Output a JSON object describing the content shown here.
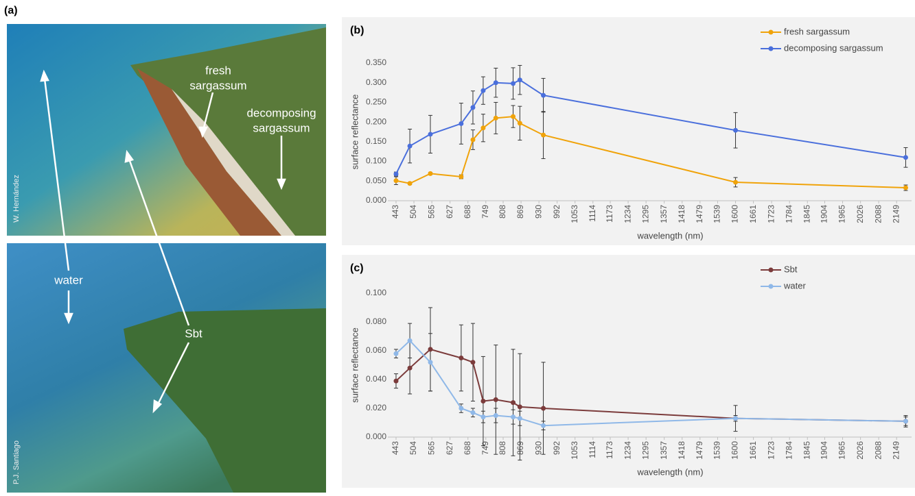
{
  "photo_panel": {
    "label": "(a)",
    "annotations": [
      "fresh",
      "sargassum",
      "decomposing",
      "sargassum",
      "water",
      "Sbt"
    ],
    "credits": [
      "W. Hernández",
      "P.J. Santiago"
    ]
  },
  "chart_data": [
    {
      "type": "line",
      "title": "(b)",
      "x_label": "wavelength (nm)",
      "y_label": "surface reflectance",
      "x": [
        443,
        490,
        560,
        665,
        705,
        740,
        783,
        842,
        865,
        945,
        1600,
        2180
      ],
      "xlim": [
        415,
        2200
      ],
      "xticks": [
        443,
        504,
        565,
        627,
        688,
        749,
        808,
        869,
        930,
        992,
        1053,
        1114,
        1173,
        1234,
        1295,
        1357,
        1418,
        1479,
        1539,
        1600,
        1661,
        1723,
        1784,
        1845,
        1904,
        1965,
        2026,
        2088,
        2149
      ],
      "ylim": [
        0,
        0.35
      ],
      "yticks": [
        {
          "value": 0,
          "label": "0.000"
        },
        {
          "value": 0.05,
          "label": "0.050"
        },
        {
          "value": 0.1,
          "label": "0.100"
        },
        {
          "value": 0.15,
          "label": "0.150"
        },
        {
          "value": 0.2,
          "label": "0.200"
        },
        {
          "value": 0.25,
          "label": "0.250"
        },
        {
          "value": 0.3,
          "label": "0.300"
        },
        {
          "value": 0.35,
          "label": "0.350"
        }
      ],
      "grid": false,
      "legend": "top-right",
      "series": [
        {
          "name": "fresh sargassum",
          "color": "#f0a30a",
          "values": [
            0.051,
            0.044,
            0.069,
            0.061,
            0.155,
            0.185,
            0.21,
            0.214,
            0.197,
            0.167,
            0.047,
            0.033
          ],
          "errors": [
            0.01,
            0.003,
            0.003,
            0.005,
            0.025,
            0.035,
            0.04,
            0.028,
            0.043,
            0.06,
            0.012,
            0.007
          ]
        },
        {
          "name": "decomposing sargassum",
          "color": "#4a6fdc",
          "values": [
            0.068,
            0.139,
            0.169,
            0.196,
            0.237,
            0.28,
            0.3,
            0.298,
            0.307,
            0.268,
            0.179,
            0.11
          ],
          "errors": [
            0.005,
            0.043,
            0.048,
            0.052,
            0.042,
            0.035,
            0.037,
            0.04,
            0.037,
            0.043,
            0.045,
            0.025
          ]
        }
      ]
    },
    {
      "type": "line",
      "title": "(c)",
      "x_label": "wavelength (nm)",
      "y_label": "surface reflectance",
      "x": [
        443,
        490,
        560,
        665,
        705,
        740,
        783,
        842,
        865,
        945,
        1600,
        2180
      ],
      "xlim": [
        415,
        2200
      ],
      "xticks": [
        443,
        504,
        565,
        627,
        688,
        749,
        808,
        869,
        930,
        992,
        1053,
        1114,
        1173,
        1234,
        1295,
        1357,
        1418,
        1479,
        1539,
        1600,
        1661,
        1723,
        1784,
        1845,
        1904,
        1965,
        2026,
        2088,
        2149
      ],
      "ylim": [
        0,
        0.1
      ],
      "yticks": [
        {
          "value": 0,
          "label": "0.000"
        },
        {
          "value": 0.02,
          "label": "0.020"
        },
        {
          "value": 0.04,
          "label": "0.040"
        },
        {
          "value": 0.06,
          "label": "0.060"
        },
        {
          "value": 0.08,
          "label": "0.080"
        },
        {
          "value": 0.1,
          "label": "0.100"
        }
      ],
      "grid": false,
      "legend": "top-right",
      "series": [
        {
          "name": "Sbt",
          "color": "#7b3b3b",
          "values": [
            0.039,
            0.048,
            0.061,
            0.055,
            0.052,
            0.025,
            0.026,
            0.024,
            0.021,
            0.02,
            0.013,
            0.011
          ],
          "errors": [
            0.005,
            0.018,
            0.029,
            0.023,
            0.027,
            0.031,
            0.038,
            0.037,
            0.037,
            0.032,
            0.009,
            0.004
          ]
        },
        {
          "name": "water",
          "color": "#8fb8e8",
          "values": [
            0.058,
            0.067,
            0.052,
            0.02,
            0.017,
            0.014,
            0.015,
            0.014,
            0.013,
            0.008,
            0.013,
            0.011
          ],
          "errors": [
            0.003,
            0.012,
            0.02,
            0.003,
            0.003,
            0.004,
            0.005,
            0.005,
            0.005,
            0.003,
            0.002,
            0.003
          ]
        }
      ]
    }
  ]
}
